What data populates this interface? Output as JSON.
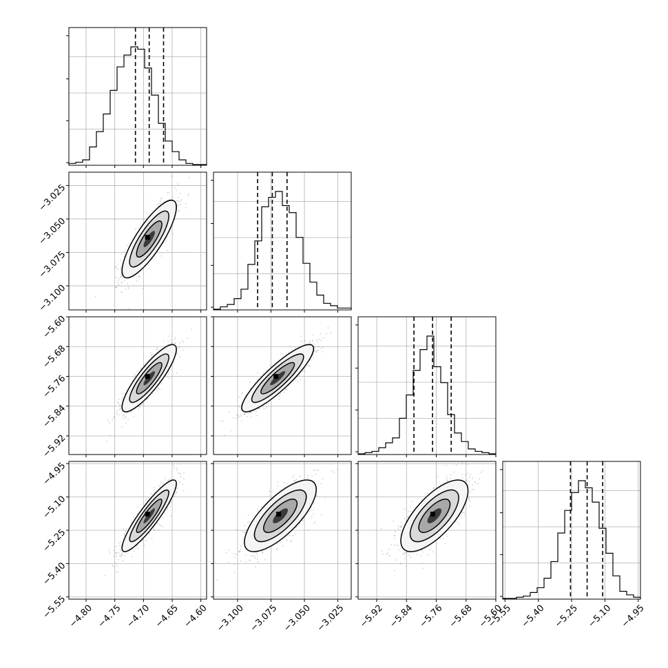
{
  "chart_data": {
    "type": "corner",
    "title": "",
    "grid": true,
    "quantile_lines": "dashed",
    "parameters": [
      {
        "name": "",
        "range": [
          -4.83,
          -4.59
        ],
        "ticks": [
          -4.8,
          -4.75,
          -4.7,
          -4.65,
          -4.6
        ],
        "tick_labels": [
          "−4.80",
          "−4.75",
          "−4.70",
          "−4.65",
          "−4.60"
        ],
        "quantiles": [
          -4.714,
          -4.69,
          -4.665
        ],
        "hist": [
          0.01,
          0.02,
          0.04,
          0.15,
          0.28,
          0.43,
          0.63,
          0.83,
          0.93,
          1.0,
          0.98,
          0.82,
          0.59,
          0.35,
          0.2,
          0.11,
          0.04,
          0.01,
          0.0,
          0.0
        ]
      },
      {
        "name": "",
        "range": [
          -3.118,
          -3.015
        ],
        "ticks": [
          -3.1,
          -3.075,
          -3.05,
          -3.025
        ],
        "tick_labels": [
          "−3.100",
          "−3.075",
          "−3.050",
          "−3.025"
        ],
        "quantiles": [
          -3.085,
          -3.074,
          -3.063
        ],
        "hist": [
          0.0,
          0.02,
          0.04,
          0.09,
          0.17,
          0.38,
          0.58,
          0.87,
          0.95,
          1.0,
          0.88,
          0.82,
          0.61,
          0.39,
          0.23,
          0.12,
          0.05,
          0.03,
          0.01,
          0.01
        ]
      },
      {
        "name": "",
        "range": [
          -5.97,
          -5.6
        ],
        "ticks": [
          -5.92,
          -5.84,
          -5.76,
          -5.68,
          -5.6
        ],
        "tick_labels": [
          "−5.92",
          "−5.84",
          "−5.76",
          "−5.68",
          "−5.60"
        ],
        "quantiles": [
          -5.82,
          -5.77,
          -5.72
        ],
        "hist": [
          0.0,
          0.01,
          0.02,
          0.05,
          0.09,
          0.13,
          0.29,
          0.48,
          0.68,
          0.85,
          0.96,
          0.71,
          0.58,
          0.32,
          0.17,
          0.1,
          0.04,
          0.02,
          0.01,
          0.0
        ]
      },
      {
        "name": "",
        "range": [
          -5.56,
          -4.94
        ],
        "ticks": [
          -5.55,
          -5.4,
          -5.25,
          -5.1,
          -4.95
        ],
        "tick_labels": [
          "−5.55",
          "−5.40",
          "−5.25",
          "−5.10",
          "−4.95"
        ],
        "quantiles": [
          -5.255,
          -5.18,
          -5.11
        ],
        "hist": [
          0.0,
          0.0,
          0.01,
          0.02,
          0.05,
          0.09,
          0.17,
          0.31,
          0.55,
          0.74,
          0.89,
          0.99,
          0.93,
          0.81,
          0.59,
          0.38,
          0.19,
          0.06,
          0.03,
          0.01
        ]
      }
    ],
    "pairs": [
      {
        "row": 1,
        "col": 0,
        "center": [
          -4.69,
          -3.065
        ],
        "sd": [
          0.022,
          0.0135
        ],
        "corr": 0.82
      },
      {
        "row": 2,
        "col": 0,
        "center": [
          -4.69,
          -5.765
        ],
        "sd": [
          0.022,
          0.042
        ],
        "corr": 0.86
      },
      {
        "row": 2,
        "col": 1,
        "center": [
          -3.07,
          -5.765
        ],
        "sd": [
          0.0125,
          0.042
        ],
        "corr": 0.88
      },
      {
        "row": 3,
        "col": 0,
        "center": [
          -4.69,
          -5.185
        ],
        "sd": [
          0.022,
          0.075
        ],
        "corr": 0.9
      },
      {
        "row": 3,
        "col": 1,
        "center": [
          -3.068,
          -5.185
        ],
        "sd": [
          0.0125,
          0.075
        ],
        "corr": 0.74
      },
      {
        "row": 3,
        "col": 2,
        "center": [
          -5.765,
          -5.185
        ],
        "sd": [
          0.042,
          0.075
        ],
        "corr": 0.7
      }
    ]
  }
}
